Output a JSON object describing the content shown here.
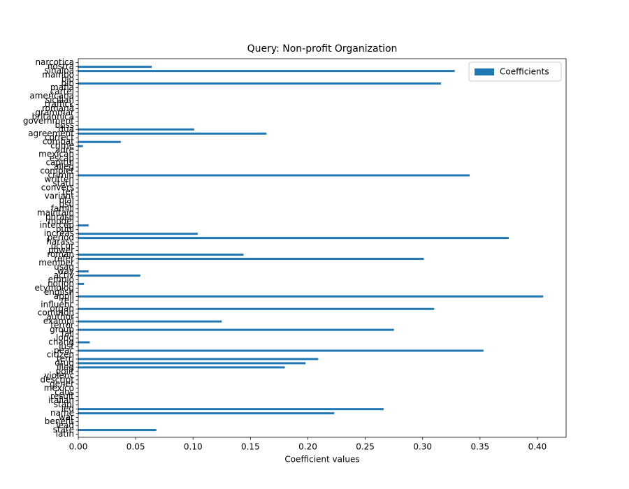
{
  "chart_data": {
    "type": "barh",
    "title": "Query: Non-profit Organization",
    "xlabel": "Coefficient values",
    "categories": [
      "latin",
      "state",
      "lead",
      "benefit",
      "war",
      "name",
      "led",
      "stabl",
      "italian",
      "result",
      "caus",
      "mexico",
      "gener",
      "descript",
      "violenc",
      "polit",
      "illeg",
      "drug",
      "terri",
      "citizen",
      "peac",
      "just",
      "chang",
      "long",
      "fall",
      "group",
      "terror",
      "exampl",
      "author",
      "common",
      "organ",
      "influenc",
      "reli",
      "appli",
      "english",
      "etymolog",
      "notion",
      "emplo",
      "activ",
      "way",
      "usag",
      "member",
      "refer",
      "roman",
      "power",
      "occur",
      "harass",
      "period",
      "increas",
      "publ",
      "intercep",
      "model",
      "phrase",
      "maintain",
      "famili",
      "usu",
      "plai",
      "variant",
      "ter",
      "convers",
      "statu",
      "written",
      "crimin",
      "complet",
      "alleg",
      "capitul",
      "escap",
      "mexican",
      "adre",
      "crime",
      "combat",
      "correct",
      "agreement",
      "dua",
      "boss",
      "government",
      "britannica",
      "grammar",
      "romana",
      "traffick",
      "sicilian",
      "americana",
      "cartel",
      "mafia",
      "pin",
      "bio",
      "mambo",
      "sinaloa",
      "nostra",
      "narcotica"
    ],
    "series": [
      {
        "name": "Coefficients",
        "color": "#1f77b4",
        "values": [
          0,
          0.068,
          0,
          0,
          0,
          0.223,
          0.266,
          0,
          0,
          0,
          0,
          0,
          0,
          0,
          0,
          0,
          0.18,
          0.198,
          0.209,
          0,
          0.353,
          0,
          0.01,
          0,
          0,
          0.275,
          0,
          0.125,
          0,
          0,
          0.31,
          0,
          0,
          0.405,
          0,
          0,
          0.005,
          0,
          0.054,
          0.009,
          0,
          0,
          0.301,
          0.144,
          0,
          0,
          0,
          0.375,
          0.104,
          0,
          0.009,
          0,
          0,
          0,
          0,
          0,
          0,
          0,
          0,
          0,
          0,
          0,
          0.341,
          0,
          0,
          0,
          0,
          0,
          0,
          0.004,
          0.037,
          0,
          0.164,
          0.101,
          0,
          0,
          0,
          0,
          0,
          0,
          0,
          0,
          0,
          0,
          0.316,
          0,
          0,
          0.328,
          0.064,
          0
        ]
      }
    ],
    "xlim": [
      0,
      0.425
    ],
    "xticks": [
      {
        "value": 0,
        "label": "0.00"
      },
      {
        "value": 0.05,
        "label": "0.05"
      },
      {
        "value": 0.1,
        "label": "0.10"
      },
      {
        "value": 0.15,
        "label": "0.15"
      },
      {
        "value": 0.2,
        "label": "0.20"
      },
      {
        "value": 0.25,
        "label": "0.25"
      },
      {
        "value": 0.3,
        "label": "0.30"
      },
      {
        "value": 0.35,
        "label": "0.35"
      },
      {
        "value": 0.4,
        "label": "0.40"
      }
    ],
    "legend": "upper right"
  }
}
